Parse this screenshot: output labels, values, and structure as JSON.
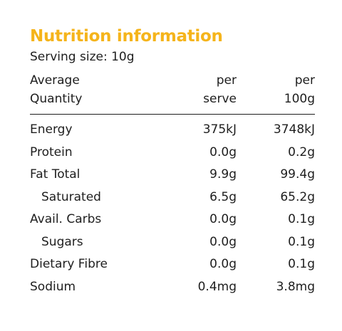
{
  "colors": {
    "title": "#f5b41b",
    "text": "#1e1e1e",
    "rule": "#1e1e1e",
    "background": "#ffffff"
  },
  "title": "Nutrition information",
  "serving_size": "Serving size: 10g",
  "header": {
    "name_line1": "Average",
    "name_line2": "Quantity",
    "serve_line1": "per",
    "serve_line2": "serve",
    "per100_line1": "per",
    "per100_line2": "100g"
  },
  "rows": [
    {
      "name": "Energy",
      "per_serve": "375kJ",
      "per_100g": "3748kJ"
    },
    {
      "name": "Protein",
      "per_serve": "0.0g",
      "per_100g": "0.2g"
    },
    {
      "name": "Fat Total",
      "per_serve": "9.9g",
      "per_100g": "99.4g"
    },
    {
      "name": "Saturated",
      "per_serve": "6.5g",
      "per_100g": "65.2g"
    },
    {
      "name": "Avail. Carbs",
      "per_serve": "0.0g",
      "per_100g": "0.1g"
    },
    {
      "name": "Sugars",
      "per_serve": "0.0g",
      "per_100g": "0.1g"
    },
    {
      "name": "Dietary Fibre",
      "per_serve": "0.0g",
      "per_100g": "0.1g"
    },
    {
      "name": "Sodium",
      "per_serve": "0.4mg",
      "per_100g": "3.8mg"
    }
  ]
}
